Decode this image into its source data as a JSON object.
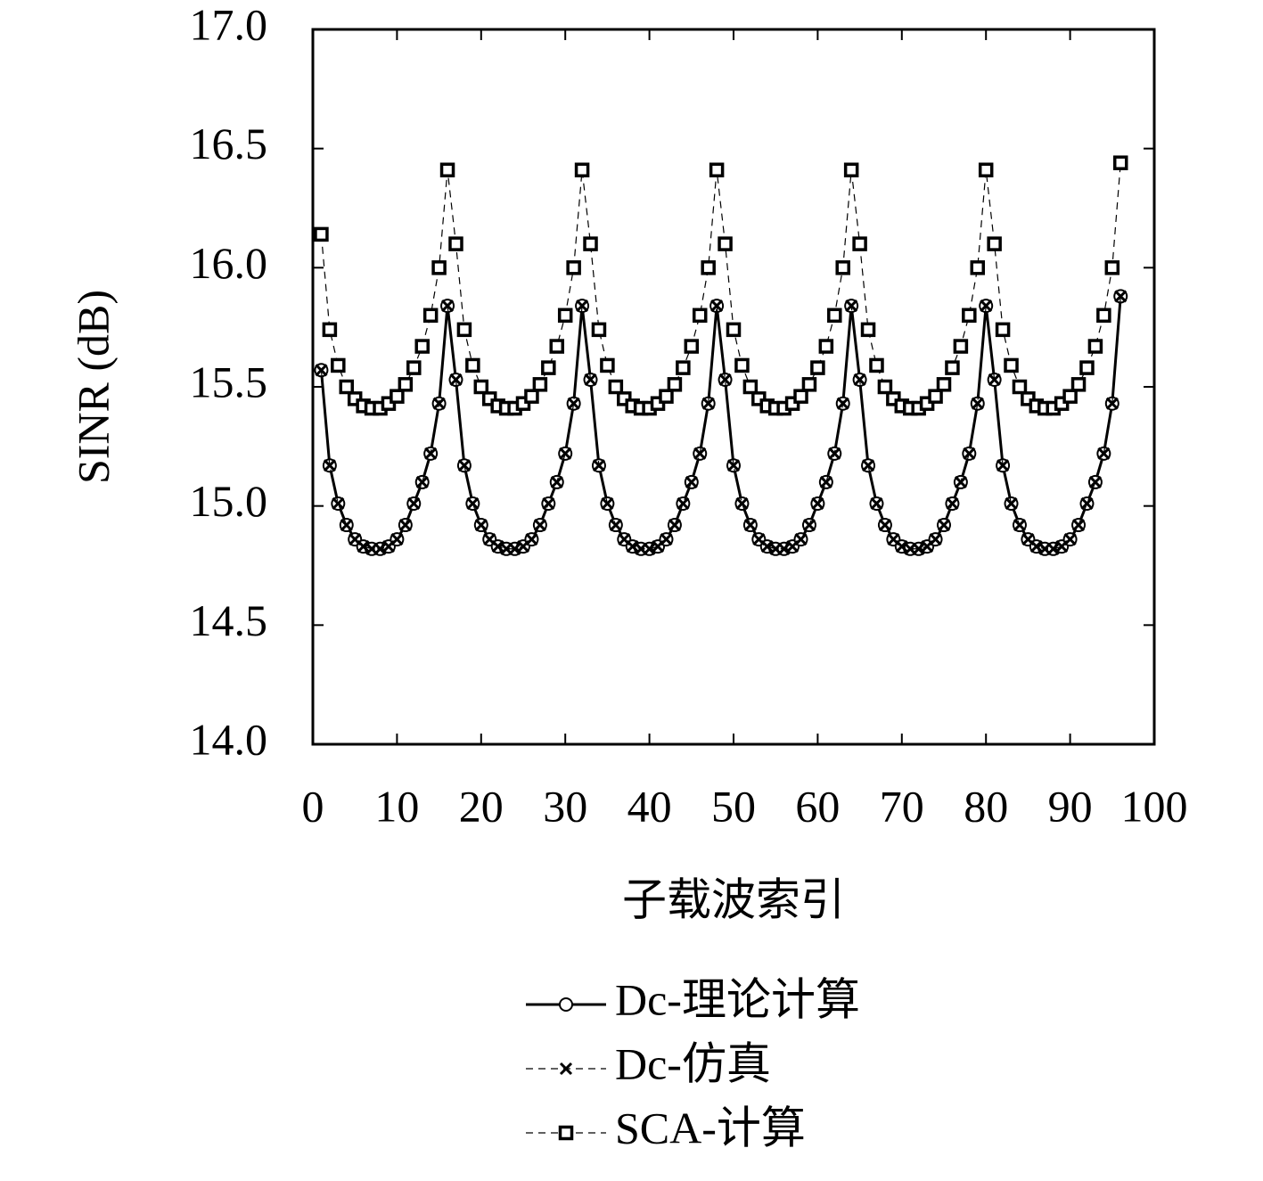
{
  "chart_data": {
    "type": "line",
    "xlabel": "子载波索引",
    "ylabel": "SINR (dB)",
    "x": [
      1,
      2,
      3,
      4,
      5,
      6,
      7,
      8,
      9,
      10,
      11,
      12,
      13,
      14,
      15,
      16,
      17,
      18,
      19,
      20,
      21,
      22,
      23,
      24,
      25,
      26,
      27,
      28,
      29,
      30,
      31,
      32,
      33,
      34,
      35,
      36,
      37,
      38,
      39,
      40,
      41,
      42,
      43,
      44,
      45,
      46,
      47,
      48,
      49,
      50,
      51,
      52,
      53,
      54,
      55,
      56,
      57,
      58,
      59,
      60,
      61,
      62,
      63,
      64,
      65,
      66,
      67,
      68,
      69,
      70,
      71,
      72,
      73,
      74,
      75,
      76,
      77,
      78,
      79,
      80,
      81,
      82,
      83,
      84,
      85,
      86,
      87,
      88,
      89,
      90,
      91,
      92,
      93,
      94,
      95,
      96
    ],
    "series": [
      {
        "name": "Dc-理论计算",
        "color": "#000000",
        "dashed": false,
        "marker": "circle",
        "values": [
          15.57,
          15.17,
          15.01,
          14.92,
          14.86,
          14.83,
          14.82,
          14.82,
          14.83,
          14.86,
          14.92,
          15.01,
          15.1,
          15.22,
          15.43,
          15.84,
          15.53,
          15.17,
          15.01,
          14.92,
          14.86,
          14.83,
          14.82,
          14.82,
          14.83,
          14.86,
          14.92,
          15.01,
          15.1,
          15.22,
          15.43,
          15.84,
          15.53,
          15.17,
          15.01,
          14.92,
          14.86,
          14.83,
          14.82,
          14.82,
          14.83,
          14.86,
          14.92,
          15.01,
          15.1,
          15.22,
          15.43,
          15.84,
          15.53,
          15.17,
          15.01,
          14.92,
          14.86,
          14.83,
          14.82,
          14.82,
          14.83,
          14.86,
          14.92,
          15.01,
          15.1,
          15.22,
          15.43,
          15.84,
          15.53,
          15.17,
          15.01,
          14.92,
          14.86,
          14.83,
          14.82,
          14.82,
          14.83,
          14.86,
          14.92,
          15.01,
          15.1,
          15.22,
          15.43,
          15.84,
          15.53,
          15.17,
          15.01,
          14.92,
          14.86,
          14.83,
          14.82,
          14.82,
          14.83,
          14.86,
          14.92,
          15.01,
          15.1,
          15.22,
          15.43,
          15.88
        ]
      },
      {
        "name": "Dc-仿真",
        "color": "#000000",
        "dashed": true,
        "marker": "cross",
        "values": [
          15.57,
          15.17,
          15.01,
          14.92,
          14.86,
          14.83,
          14.82,
          14.82,
          14.83,
          14.86,
          14.92,
          15.01,
          15.1,
          15.22,
          15.43,
          15.84,
          15.53,
          15.17,
          15.01,
          14.92,
          14.86,
          14.83,
          14.82,
          14.82,
          14.83,
          14.86,
          14.92,
          15.01,
          15.1,
          15.22,
          15.43,
          15.84,
          15.53,
          15.17,
          15.01,
          14.92,
          14.86,
          14.83,
          14.82,
          14.82,
          14.83,
          14.86,
          14.92,
          15.01,
          15.1,
          15.22,
          15.43,
          15.84,
          15.53,
          15.17,
          15.01,
          14.92,
          14.86,
          14.83,
          14.82,
          14.82,
          14.83,
          14.86,
          14.92,
          15.01,
          15.1,
          15.22,
          15.43,
          15.84,
          15.53,
          15.17,
          15.01,
          14.92,
          14.86,
          14.83,
          14.82,
          14.82,
          14.83,
          14.86,
          14.92,
          15.01,
          15.1,
          15.22,
          15.43,
          15.84,
          15.53,
          15.17,
          15.01,
          14.92,
          14.86,
          14.83,
          14.82,
          14.82,
          14.83,
          14.86,
          14.92,
          15.01,
          15.1,
          15.22,
          15.43,
          15.88
        ]
      },
      {
        "name": "SCA-计算",
        "color": "#000000",
        "dashed": true,
        "marker": "square",
        "values": [
          16.14,
          15.74,
          15.59,
          15.5,
          15.45,
          15.42,
          15.41,
          15.41,
          15.43,
          15.46,
          15.51,
          15.58,
          15.67,
          15.8,
          16.0,
          16.41,
          16.1,
          15.74,
          15.59,
          15.5,
          15.45,
          15.42,
          15.41,
          15.41,
          15.43,
          15.46,
          15.51,
          15.58,
          15.67,
          15.8,
          16.0,
          16.41,
          16.1,
          15.74,
          15.59,
          15.5,
          15.45,
          15.42,
          15.41,
          15.41,
          15.43,
          15.46,
          15.51,
          15.58,
          15.67,
          15.8,
          16.0,
          16.41,
          16.1,
          15.74,
          15.59,
          15.5,
          15.45,
          15.42,
          15.41,
          15.41,
          15.43,
          15.46,
          15.51,
          15.58,
          15.67,
          15.8,
          16.0,
          16.41,
          16.1,
          15.74,
          15.59,
          15.5,
          15.45,
          15.42,
          15.41,
          15.41,
          15.43,
          15.46,
          15.51,
          15.58,
          15.67,
          15.8,
          16.0,
          16.41,
          16.1,
          15.74,
          15.59,
          15.5,
          15.45,
          15.42,
          15.41,
          15.41,
          15.43,
          15.46,
          15.51,
          15.58,
          15.67,
          15.8,
          16.0,
          16.44
        ]
      }
    ],
    "xlim": [
      0,
      100
    ],
    "xticks": [
      0,
      10,
      20,
      30,
      40,
      50,
      60,
      70,
      80,
      90,
      100
    ],
    "ylim": [
      14,
      17
    ],
    "yticks": [
      {
        "value": 14,
        "label": "14.0"
      },
      14.5,
      {
        "value": 15,
        "label": "15.0"
      },
      15.5,
      {
        "value": 16,
        "label": "16.0"
      },
      16.5,
      {
        "value": 17,
        "label": "17.0"
      }
    ],
    "grid": false,
    "legend": "bottom"
  }
}
